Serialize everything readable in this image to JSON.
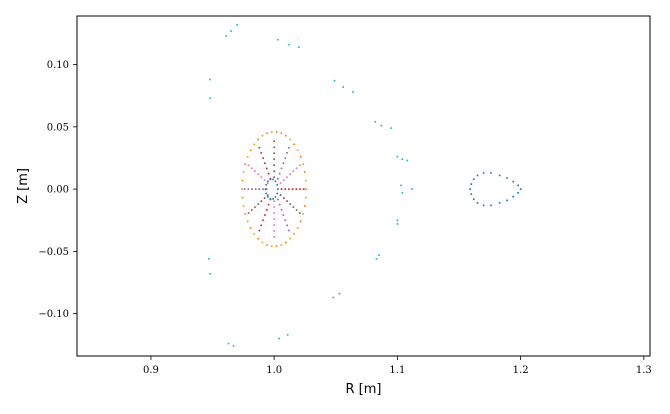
{
  "chart_data": {
    "type": "scatter",
    "title": "",
    "xlabel": "R [m]",
    "ylabel": "Z [m]",
    "xlim": [
      0.84,
      1.305
    ],
    "ylim": [
      -0.134,
      0.139
    ],
    "x_ticks": [
      {
        "value": 0.9,
        "label": "0.9"
      },
      {
        "value": 1.0,
        "label": "1.0"
      },
      {
        "value": 1.1,
        "label": "1.1"
      },
      {
        "value": 1.2,
        "label": "1.2"
      },
      {
        "value": 1.3,
        "label": "1.3"
      }
    ],
    "y_ticks": [
      {
        "value": -0.1,
        "label": "−0.10"
      },
      {
        "value": -0.05,
        "label": "−0.05"
      },
      {
        "value": 0.0,
        "label": "0.00"
      },
      {
        "value": 0.05,
        "label": "0.05"
      },
      {
        "value": 0.1,
        "label": "0.10"
      }
    ],
    "grid": false,
    "legend": "none",
    "series_colors": [
      "#1f77b4",
      "#ff7f0e",
      "#2ca02c",
      "#d62728",
      "#9467bd",
      "#8c564b",
      "#e377c2",
      "#7f7f7f",
      "#bcbd22",
      "#17becf"
    ],
    "spoke_series": {
      "center": [
        1.0,
        0.0
      ],
      "angles_deg": [
        0,
        30,
        60,
        90,
        120,
        150,
        180,
        210,
        240,
        270,
        300,
        330
      ],
      "radii": [
        0.006,
        0.009,
        0.012,
        0.015,
        0.018,
        0.021,
        0.024
      ],
      "aspect_z": 1.6,
      "colors": [
        "#d62728",
        "#e377c2",
        "#9467bd",
        "#8c564b",
        "#d62728",
        "#e377c2",
        "#9467bd",
        "#8c564b",
        "#d62728",
        "#e377c2",
        "#9467bd",
        "#8c564b"
      ]
    },
    "outer_ring": {
      "center": [
        1.0,
        0.0
      ],
      "a": 0.026,
      "b": 0.046,
      "count": 42,
      "colors": [
        "#ff7f0e",
        "#bcbd22"
      ]
    },
    "inner_ring": {
      "center": [
        0.998,
        0.0
      ],
      "a": 0.005,
      "b": 0.008,
      "count": 14,
      "color": "#1f77b4"
    },
    "island_series": {
      "color": "#1f77b4",
      "points": [
        [
          1.2,
          0.0
        ],
        [
          1.198,
          0.003
        ],
        [
          1.194,
          0.006
        ],
        [
          1.189,
          0.009
        ],
        [
          1.183,
          0.011
        ],
        [
          1.176,
          0.013
        ],
        [
          1.17,
          0.013
        ],
        [
          1.165,
          0.011
        ],
        [
          1.162,
          0.008
        ],
        [
          1.16,
          0.004
        ],
        [
          1.159,
          0.0
        ],
        [
          1.16,
          -0.004
        ],
        [
          1.162,
          -0.008
        ],
        [
          1.165,
          -0.011
        ],
        [
          1.17,
          -0.013
        ],
        [
          1.176,
          -0.013
        ],
        [
          1.183,
          -0.011
        ],
        [
          1.189,
          -0.009
        ],
        [
          1.194,
          -0.006
        ],
        [
          1.198,
          -0.003
        ]
      ]
    },
    "outer_chaotic_series": {
      "color": "#17becf",
      "points": [
        [
          0.97,
          0.132
        ],
        [
          0.965,
          0.127
        ],
        [
          0.961,
          0.123
        ],
        [
          1.003,
          0.12
        ],
        [
          1.012,
          0.116
        ],
        [
          1.02,
          0.114
        ],
        [
          0.948,
          0.088
        ],
        [
          0.948,
          0.073
        ],
        [
          1.049,
          0.087
        ],
        [
          1.056,
          0.082
        ],
        [
          1.064,
          0.078
        ],
        [
          1.082,
          0.054
        ],
        [
          1.087,
          0.051
        ],
        [
          1.095,
          0.049
        ],
        [
          1.1,
          0.026
        ],
        [
          1.104,
          0.024
        ],
        [
          1.108,
          0.023
        ],
        [
          1.103,
          0.003
        ],
        [
          1.104,
          -0.003
        ],
        [
          1.112,
          0.0
        ],
        [
          1.1,
          -0.025
        ],
        [
          1.1,
          -0.028
        ],
        [
          1.085,
          -0.053
        ],
        [
          1.083,
          -0.056
        ],
        [
          1.048,
          -0.087
        ],
        [
          1.053,
          -0.084
        ],
        [
          0.947,
          -0.056
        ],
        [
          0.948,
          -0.068
        ],
        [
          1.011,
          -0.117
        ],
        [
          1.004,
          -0.12
        ],
        [
          0.963,
          -0.124
        ],
        [
          0.967,
          -0.126
        ]
      ]
    }
  }
}
